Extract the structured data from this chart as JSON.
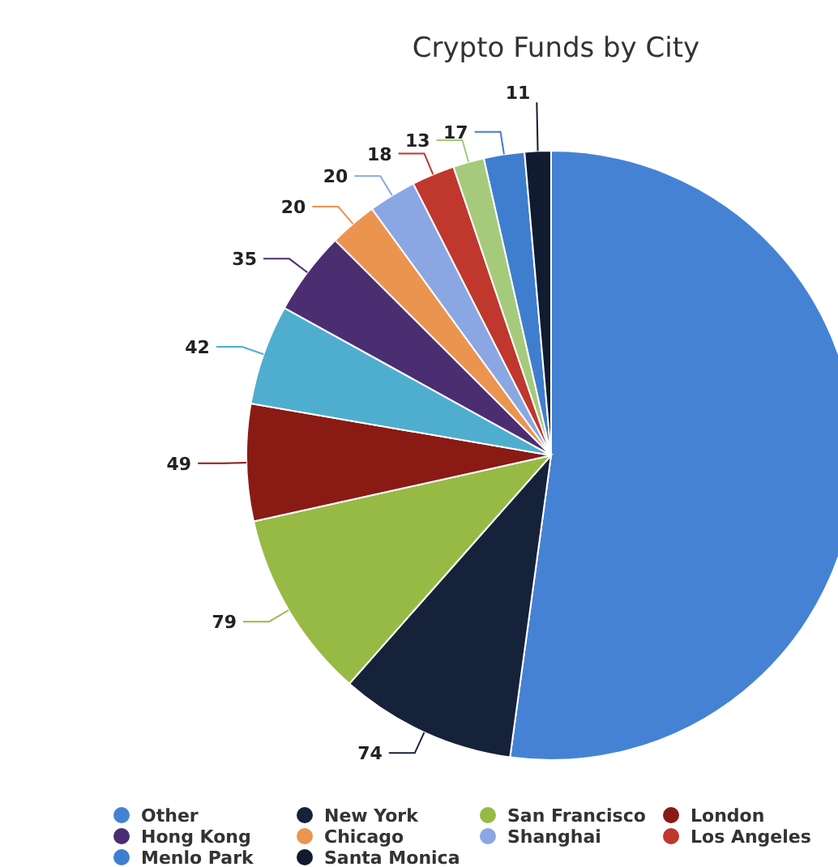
{
  "chart_data": {
    "type": "pie",
    "title": "Crypto Funds by City",
    "categories": [
      "Other",
      "New York",
      "San Francisco",
      "London",
      null,
      "Hong Kong",
      "Chicago",
      "Shanghai",
      "Los Angeles",
      null,
      "Menlo Park",
      "Santa Monica"
    ],
    "values": [
      412,
      74,
      79,
      49,
      42,
      35,
      20,
      20,
      18,
      13,
      17,
      11
    ],
    "value_labels": [
      null,
      "74",
      "79",
      "49",
      "42",
      "35",
      "20",
      "20",
      "18",
      "13",
      "17",
      "11"
    ],
    "colors": [
      "#4682d4",
      "#16223a",
      "#97ba45",
      "#8a1a14",
      "#4faecf",
      "#4b2e72",
      "#eb944f",
      "#8aa7e3",
      "#c0372d",
      "#a6ca7b",
      "#3f7ecf",
      "#111b30"
    ],
    "legend": "bottom"
  }
}
